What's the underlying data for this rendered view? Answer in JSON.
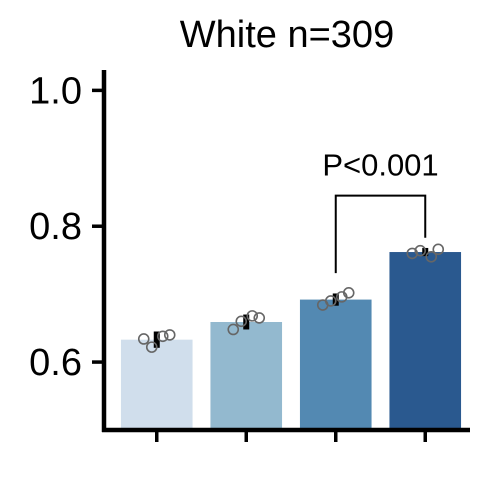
{
  "chart_data": {
    "type": "bar",
    "title": "White n=309",
    "categories": [
      "",
      "",
      "",
      ""
    ],
    "values": [
      0.633,
      0.659,
      0.692,
      0.762
    ],
    "errors": [
      0.012,
      0.011,
      0.009,
      0.006
    ],
    "points": [
      [
        0.634,
        0.622,
        0.638,
        0.64
      ],
      [
        0.648,
        0.66,
        0.668,
        0.665
      ],
      [
        0.684,
        0.69,
        0.696,
        0.702
      ],
      [
        0.76,
        0.764,
        0.755,
        0.766
      ]
    ],
    "colors": [
      "#d0deec",
      "#93b9cf",
      "#5389b2",
      "#2a598f"
    ],
    "ylim": [
      0.5,
      1.03
    ],
    "yticks": [
      0.6,
      0.8,
      1.0
    ],
    "ytick_labels": [
      "0.6",
      "0.8",
      "1.0"
    ],
    "xlabel": "",
    "ylabel": "",
    "grid": false,
    "annotation": {
      "text": "P<0.001",
      "from_bar": 2,
      "to_bar": 3,
      "y": 0.845
    }
  }
}
